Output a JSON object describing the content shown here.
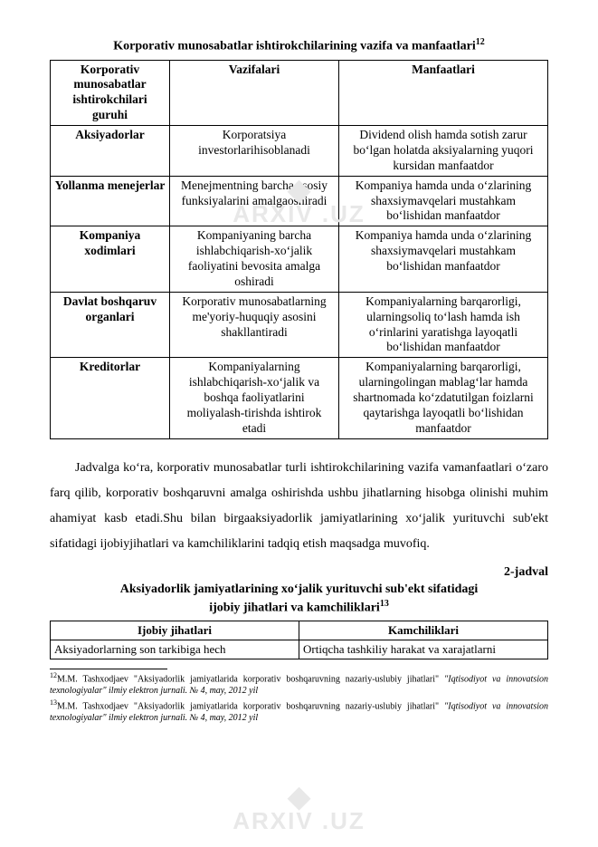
{
  "watermark": {
    "logo": "◆",
    "text": "ARXIV .UZ"
  },
  "table1": {
    "title": "Korporativ munosabatlar ishtirokchilarining vazifa va manfaatlari",
    "title_sup": "12",
    "headers": {
      "c1": "Korporativ munosabatlar ishtirokchilari guruhi",
      "c2": "Vazifalari",
      "c3": "Manfaatlari"
    },
    "rows": [
      {
        "c1": "Aksiyadorlar",
        "c2": "Korporatsiya investorlarihisoblanadi",
        "c3": "Dividend olish hamda sotish zarur bo‘lgan holatda aksiyalarning yuqori kursidan manfaatdor"
      },
      {
        "c1": "Yollanma menejerlar",
        "c2": "Menejmentning barcha asosiy funksiyalarini amalgaoshiradi",
        "c3": "Kompaniya hamda unda o‘zlarining shaxsiymavqelari mustahkam bo‘lishidan manfaatdor"
      },
      {
        "c1": "Kompaniya xodimlari",
        "c2": "Kompaniyaning barcha ishlabchiqarish-xo‘jalik faoliyatini bevosita amalga oshiradi",
        "c3": "Kompaniya hamda unda o‘zlarining shaxsiymavqelari mustahkam bo‘lishidan manfaatdor"
      },
      {
        "c1": "Davlat boshqaruv organlari",
        "c2": "Korporativ munosabatlarning me'yoriy-huquqiy asosini shakllantiradi",
        "c3": "Kompaniyalarning barqarorligi, ularningsoliq to‘lash hamda ish o‘rinlarini yaratishga layoqatli bo‘lishidan manfaatdor"
      },
      {
        "c1": "Kreditorlar",
        "c2": "Kompaniyalarning ishlabchiqarish-xo‘jalik va boshqa faoliyatlarini moliyalash-tirishda ishtirok etadi",
        "c3": "Kompaniyalarning barqarorligi, ularningolingan mablag‘lar hamda shartnomada ko‘zdatutilgan foizlarni qaytarishga layoqatli bo‘lishidan manfaatdor"
      }
    ]
  },
  "paragraph": "Jadvalga ko‘ra, korporativ munosabatlar turli ishtirokchilarining vazifa vamanfaatlari o‘zaro farq qilib, korporativ boshqaruvni amalga oshirishda ushbu jihatlarning hisobga olinishi muhim ahamiyat kasb etadi.Shu bilan birgaaksiyadorlik jamiyatlarining xo‘jalik yurituvchi sub'ekt sifatidagi ijobiyjihatlari va kamchiliklarini tadqiq etish maqsadga muvofiq.",
  "jadval_label": "2-jadval",
  "table2": {
    "title_l1": "Aksiyadorlik jamiyatlarining xo‘jalik yurituvchi sub'ekt sifatidagi",
    "title_l2": "ijobiy jihatlari va kamchiliklari",
    "title_sup": "13",
    "headers": {
      "c1": "Ijobiy jihatlari",
      "c2": "Kamchiliklari"
    },
    "row": {
      "c1": "Aksiyadorlarning son tarkibiga hech",
      "c2": "Ortiqcha tashkiliy harakat va xarajatlarni"
    }
  },
  "footnotes": {
    "f1": {
      "num": "12",
      "text_a": "M.M. Tashxodjaev \"Aksiyadorlik jamiyatlarida korporativ boshqaruvning nazariy-uslubiy jihatlari\" ",
      "text_b": "\"Iqtisodiyot va innovatsion texnologiyalar\" ilmiy elektron jurnali. № 4, may, 2012 yil"
    },
    "f2": {
      "num": "13",
      "text_a": "M.M. Tashxodjaev \"Aksiyadorlik jamiyatlarida korporativ boshqaruvning nazariy-uslubiy jihatlari\" ",
      "text_b": "\"Iqtisodiyot va innovatsion texnologiyalar\" ilmiy elektron jurnali. № 4, may, 2012 yil"
    }
  }
}
